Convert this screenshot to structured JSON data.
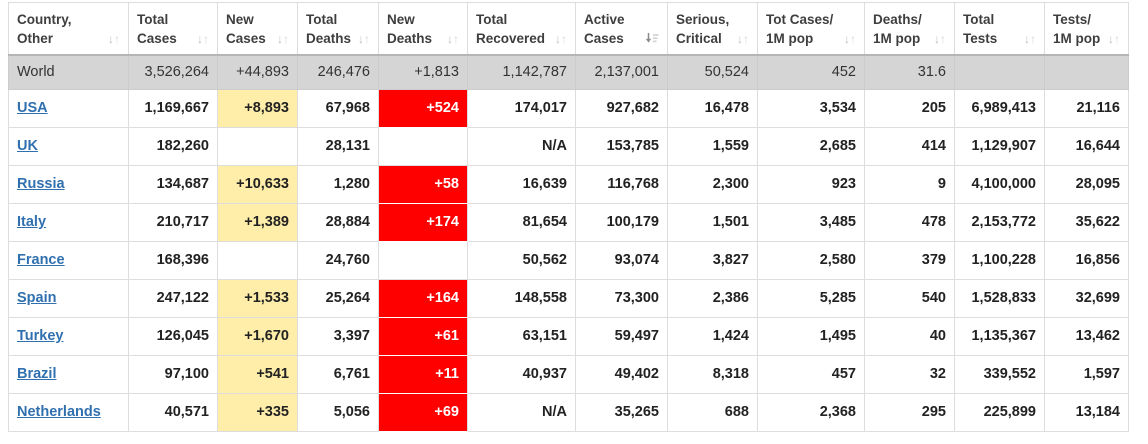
{
  "colors": {
    "new_cases_highlight": "#FFEEAA",
    "new_deaths_highlight": "#FF0000",
    "new_deaths_text": "#FFFFFF",
    "world_row_background": "#D5D5D5",
    "country_link": "#3070AF",
    "header_text": "#3E3E3E",
    "body_text": "#222222",
    "grid_border": "#DDDDDD"
  },
  "table": {
    "columns": [
      {
        "key": "country",
        "line1": "Country,",
        "line2": "Other",
        "sort": "both"
      },
      {
        "key": "total_cases",
        "line1": "Total",
        "line2": "Cases",
        "sort": "both"
      },
      {
        "key": "new_cases",
        "line1": "New",
        "line2": "Cases",
        "sort": "both"
      },
      {
        "key": "total_deaths",
        "line1": "Total",
        "line2": "Deaths",
        "sort": "both"
      },
      {
        "key": "new_deaths",
        "line1": "New",
        "line2": "Deaths",
        "sort": "both"
      },
      {
        "key": "total_recovered",
        "line1": "Total",
        "line2": "Recovered",
        "sort": "both"
      },
      {
        "key": "active_cases",
        "line1": "Active",
        "line2": "Cases",
        "sort": "desc"
      },
      {
        "key": "serious_critical",
        "line1": "Serious,",
        "line2": "Critical",
        "sort": "both"
      },
      {
        "key": "tot_cases_1m",
        "line1": "Tot Cases/",
        "line2": "1M pop",
        "sort": "both"
      },
      {
        "key": "deaths_1m",
        "line1": "Deaths/",
        "line2": "1M pop",
        "sort": "both"
      },
      {
        "key": "total_tests",
        "line1": "Total",
        "line2": "Tests",
        "sort": "both"
      },
      {
        "key": "tests_1m",
        "line1": "Tests/",
        "line2": "1M pop",
        "sort": "both"
      }
    ],
    "world_row": {
      "country": "World",
      "total_cases": "3,526,264",
      "new_cases": "+44,893",
      "total_deaths": "246,476",
      "new_deaths": "+1,813",
      "total_recovered": "1,142,787",
      "active_cases": "2,137,001",
      "serious_critical": "50,524",
      "tot_cases_1m": "452",
      "deaths_1m": "31.6",
      "total_tests": "",
      "tests_1m": ""
    },
    "rows": [
      {
        "country": "USA",
        "total_cases": "1,169,667",
        "new_cases": "+8,893",
        "total_deaths": "67,968",
        "new_deaths": "+524",
        "total_recovered": "174,017",
        "active_cases": "927,682",
        "serious_critical": "16,478",
        "tot_cases_1m": "3,534",
        "deaths_1m": "205",
        "total_tests": "6,989,413",
        "tests_1m": "21,116"
      },
      {
        "country": "UK",
        "total_cases": "182,260",
        "new_cases": "",
        "total_deaths": "28,131",
        "new_deaths": "",
        "total_recovered": "N/A",
        "active_cases": "153,785",
        "serious_critical": "1,559",
        "tot_cases_1m": "2,685",
        "deaths_1m": "414",
        "total_tests": "1,129,907",
        "tests_1m": "16,644"
      },
      {
        "country": "Russia",
        "total_cases": "134,687",
        "new_cases": "+10,633",
        "total_deaths": "1,280",
        "new_deaths": "+58",
        "total_recovered": "16,639",
        "active_cases": "116,768",
        "serious_critical": "2,300",
        "tot_cases_1m": "923",
        "deaths_1m": "9",
        "total_tests": "4,100,000",
        "tests_1m": "28,095"
      },
      {
        "country": "Italy",
        "total_cases": "210,717",
        "new_cases": "+1,389",
        "total_deaths": "28,884",
        "new_deaths": "+174",
        "total_recovered": "81,654",
        "active_cases": "100,179",
        "serious_critical": "1,501",
        "tot_cases_1m": "3,485",
        "deaths_1m": "478",
        "total_tests": "2,153,772",
        "tests_1m": "35,622"
      },
      {
        "country": "France",
        "total_cases": "168,396",
        "new_cases": "",
        "total_deaths": "24,760",
        "new_deaths": "",
        "total_recovered": "50,562",
        "active_cases": "93,074",
        "serious_critical": "3,827",
        "tot_cases_1m": "2,580",
        "deaths_1m": "379",
        "total_tests": "1,100,228",
        "tests_1m": "16,856"
      },
      {
        "country": "Spain",
        "total_cases": "247,122",
        "new_cases": "+1,533",
        "total_deaths": "25,264",
        "new_deaths": "+164",
        "total_recovered": "148,558",
        "active_cases": "73,300",
        "serious_critical": "2,386",
        "tot_cases_1m": "5,285",
        "deaths_1m": "540",
        "total_tests": "1,528,833",
        "tests_1m": "32,699"
      },
      {
        "country": "Turkey",
        "total_cases": "126,045",
        "new_cases": "+1,670",
        "total_deaths": "3,397",
        "new_deaths": "+61",
        "total_recovered": "63,151",
        "active_cases": "59,497",
        "serious_critical": "1,424",
        "tot_cases_1m": "1,495",
        "deaths_1m": "40",
        "total_tests": "1,135,367",
        "tests_1m": "13,462"
      },
      {
        "country": "Brazil",
        "total_cases": "97,100",
        "new_cases": "+541",
        "total_deaths": "6,761",
        "new_deaths": "+11",
        "total_recovered": "40,937",
        "active_cases": "49,402",
        "serious_critical": "8,318",
        "tot_cases_1m": "457",
        "deaths_1m": "32",
        "total_tests": "339,552",
        "tests_1m": "1,597"
      },
      {
        "country": "Netherlands",
        "total_cases": "40,571",
        "new_cases": "+335",
        "total_deaths": "5,056",
        "new_deaths": "+69",
        "total_recovered": "N/A",
        "active_cases": "35,265",
        "serious_critical": "688",
        "tot_cases_1m": "2,368",
        "deaths_1m": "295",
        "total_tests": "225,899",
        "tests_1m": "13,184"
      }
    ]
  }
}
